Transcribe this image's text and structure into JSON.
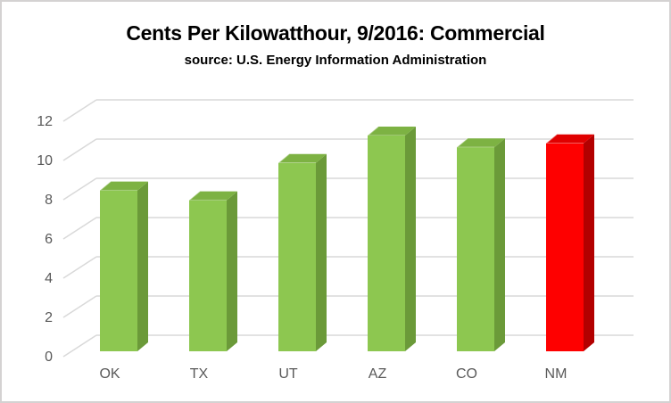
{
  "header": {
    "title": "Cents Per Kilowatthour, 9/2016: Commercial",
    "subtitle": "source: U.S. Energy Information Administration"
  },
  "chart_data": {
    "type": "bar",
    "style": "3d-column",
    "title": "Cents Per Kilowatthour, 9/2016: Commercial",
    "subtitle": "source: U.S. Energy Information Administration",
    "categories": [
      "OK",
      "TX",
      "UT",
      "AZ",
      "CO",
      "NM"
    ],
    "values": [
      8.2,
      7.7,
      9.6,
      11.0,
      10.4,
      10.6
    ],
    "xlabel": "",
    "ylabel": "",
    "ylim": [
      0,
      12
    ],
    "yticks": [
      0,
      2,
      4,
      6,
      8,
      10,
      12
    ],
    "grid": true,
    "legend": false,
    "highlight_category": "NM",
    "bar_colors": {
      "default": {
        "front": "#8dc750",
        "top": "#7db243",
        "side": "#6b9a39"
      },
      "highlight": {
        "front": "#fe0000",
        "top": "#e00000",
        "side": "#b30000"
      }
    }
  },
  "colors": {
    "background": "#ffffff",
    "frame_border": "#d4d2d2",
    "gridline": "#d9d9d9",
    "axis_text": "#595959",
    "title_text": "#000000"
  }
}
